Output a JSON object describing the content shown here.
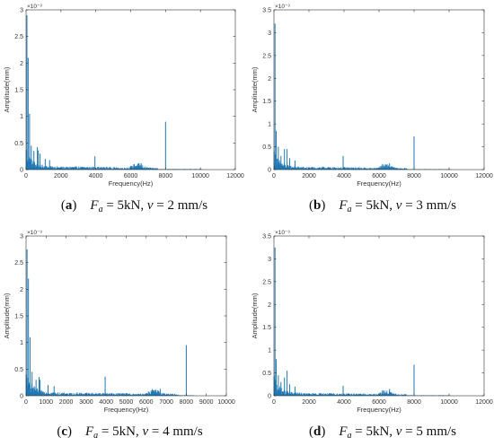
{
  "figure": {
    "panels": [
      {
        "caption": {
          "letter": "a",
          "var": "F",
          "sub": "a",
          "text1": " = 5kN, ",
          "var2": "v",
          "text2": " = 2 mm/s"
        },
        "exponent": "×10⁻³"
      },
      {
        "caption": {
          "letter": "b",
          "var": "F",
          "sub": "a",
          "text1": " = 5kN, ",
          "var2": "v",
          "text2": " = 3 mm/s"
        },
        "exponent": "×10⁻³"
      },
      {
        "caption": {
          "letter": "c",
          "var": "F",
          "sub": "a",
          "text1": " = 5kN, ",
          "var2": "v",
          "text2": " = 4 mm/s"
        },
        "exponent": "×10⁻³"
      },
      {
        "caption": {
          "letter": "d",
          "var": "F",
          "sub": "a",
          "text1": " = 5kN, ",
          "var2": "v",
          "text2": " = 5 mm/s"
        },
        "exponent": "×10⁻³"
      }
    ]
  },
  "chart_data": [
    {
      "type": "line",
      "series_color": "#1f77b4",
      "xlabel": "Frequency(Hz)",
      "ylabel": "Amplitude(mm)",
      "xlim": [
        0,
        12000
      ],
      "ylim": [
        0,
        3
      ],
      "xticks": [
        0,
        2000,
        4000,
        6000,
        8000,
        10000,
        12000
      ],
      "yticks": [
        0,
        0.5,
        1,
        1.5,
        2,
        2.5,
        3
      ],
      "grid": false,
      "spikes": [
        {
          "x": 50,
          "y": 2.9
        },
        {
          "x": 120,
          "y": 2.1
        },
        {
          "x": 200,
          "y": 1.05
        },
        {
          "x": 300,
          "y": 0.45
        },
        {
          "x": 450,
          "y": 0.35
        },
        {
          "x": 650,
          "y": 0.42
        },
        {
          "x": 700,
          "y": 0.36
        },
        {
          "x": 800,
          "y": 0.3
        },
        {
          "x": 1100,
          "y": 0.2
        },
        {
          "x": 1350,
          "y": 0.18
        },
        {
          "x": 3950,
          "y": 0.25
        },
        {
          "x": 6200,
          "y": 0.1
        },
        {
          "x": 6600,
          "y": 0.12
        },
        {
          "x": 8000,
          "y": 0.9
        }
      ]
    },
    {
      "type": "line",
      "series_color": "#1f77b4",
      "xlabel": "Frequency(Hz)",
      "ylabel": "Amplitude(mm)",
      "xlim": [
        0,
        12000
      ],
      "ylim": [
        0,
        3.5
      ],
      "xticks": [
        0,
        2000,
        4000,
        6000,
        8000,
        10000,
        12000
      ],
      "yticks": [
        0,
        0.5,
        1,
        1.5,
        2,
        2.5,
        3,
        3.5
      ],
      "grid": false,
      "spikes": [
        {
          "x": 60,
          "y": 3.2
        },
        {
          "x": 130,
          "y": 0.85
        },
        {
          "x": 250,
          "y": 0.5
        },
        {
          "x": 400,
          "y": 0.3
        },
        {
          "x": 600,
          "y": 0.45
        },
        {
          "x": 750,
          "y": 0.45
        },
        {
          "x": 900,
          "y": 0.25
        },
        {
          "x": 1200,
          "y": 0.2
        },
        {
          "x": 3950,
          "y": 0.3
        },
        {
          "x": 6200,
          "y": 0.12
        },
        {
          "x": 6600,
          "y": 0.14
        },
        {
          "x": 8000,
          "y": 0.73
        }
      ]
    },
    {
      "type": "line",
      "series_color": "#1f77b4",
      "xlabel": "Frequency(Hz)",
      "ylabel": "Amplitude(mm)",
      "xlim": [
        0,
        10000
      ],
      "ylim": [
        0,
        3
      ],
      "xticks": [
        0,
        1000,
        2000,
        3000,
        4000,
        5000,
        6000,
        7000,
        8000,
        9000,
        10000
      ],
      "yticks": [
        0,
        0.5,
        1,
        1.5,
        2,
        2.5,
        3
      ],
      "grid": false,
      "spikes": [
        {
          "x": 50,
          "y": 2.75
        },
        {
          "x": 120,
          "y": 2.2
        },
        {
          "x": 200,
          "y": 1.1
        },
        {
          "x": 300,
          "y": 0.45
        },
        {
          "x": 500,
          "y": 0.3
        },
        {
          "x": 650,
          "y": 0.35
        },
        {
          "x": 700,
          "y": 0.3
        },
        {
          "x": 1100,
          "y": 0.2
        },
        {
          "x": 1400,
          "y": 0.18
        },
        {
          "x": 3950,
          "y": 0.36
        },
        {
          "x": 6300,
          "y": 0.12
        },
        {
          "x": 6700,
          "y": 0.13
        },
        {
          "x": 8000,
          "y": 0.95
        }
      ]
    },
    {
      "type": "line",
      "series_color": "#1f77b4",
      "xlabel": "Frequency(Hz)",
      "ylabel": "Amplitude(mm)",
      "xlim": [
        0,
        12000
      ],
      "ylim": [
        0,
        3.5
      ],
      "xticks": [
        0,
        2000,
        4000,
        6000,
        8000,
        10000,
        12000
      ],
      "yticks": [
        0,
        0.5,
        1,
        1.5,
        2,
        2.5,
        3,
        3.5
      ],
      "grid": false,
      "spikes": [
        {
          "x": 60,
          "y": 3.25
        },
        {
          "x": 130,
          "y": 0.8
        },
        {
          "x": 250,
          "y": 0.45
        },
        {
          "x": 400,
          "y": 0.3
        },
        {
          "x": 600,
          "y": 0.4
        },
        {
          "x": 750,
          "y": 0.55
        },
        {
          "x": 900,
          "y": 0.25
        },
        {
          "x": 1200,
          "y": 0.2
        },
        {
          "x": 3950,
          "y": 0.22
        },
        {
          "x": 6200,
          "y": 0.12
        },
        {
          "x": 6600,
          "y": 0.15
        },
        {
          "x": 8000,
          "y": 0.68
        }
      ]
    }
  ]
}
